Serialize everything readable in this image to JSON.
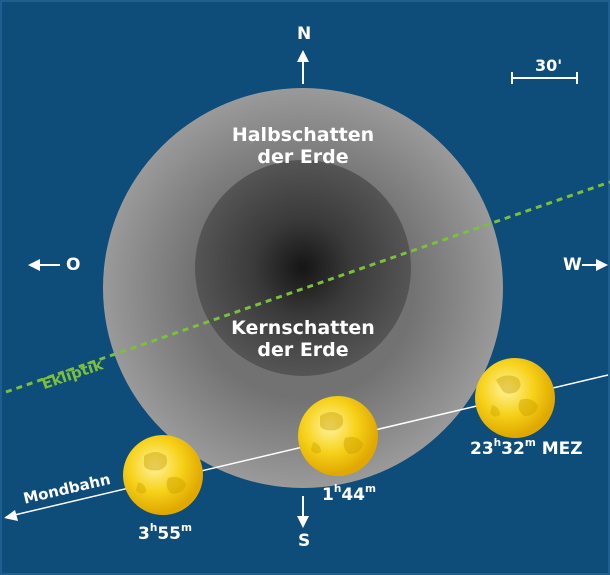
{
  "compass": {
    "north": "N",
    "south": "S",
    "east": "O",
    "west": "W"
  },
  "scale": {
    "label": "30'"
  },
  "penumbra": {
    "line1": "Halbschatten",
    "line2": "der Erde"
  },
  "umbra": {
    "line1": "Kernschatten",
    "line2": "der Erde"
  },
  "ecliptic": {
    "label": "Ekliptik"
  },
  "moon_path": {
    "label": "Mondbahn"
  },
  "moon_times": [
    {
      "h": "23",
      "m": "32",
      "suffix": " MEZ"
    },
    {
      "h": "1",
      "m": "44",
      "suffix": ""
    },
    {
      "h": "3",
      "m": "55",
      "suffix": ""
    }
  ],
  "time_units": {
    "hour": "h",
    "minute": "m"
  },
  "colors": {
    "background": "#0e4c7a",
    "background_edge": "#1e5f8f",
    "penumbra": "#8c8c8c",
    "umbra": "#4f4f4f",
    "ecliptic": "#7bbf3c",
    "moon": "#f2c200"
  }
}
